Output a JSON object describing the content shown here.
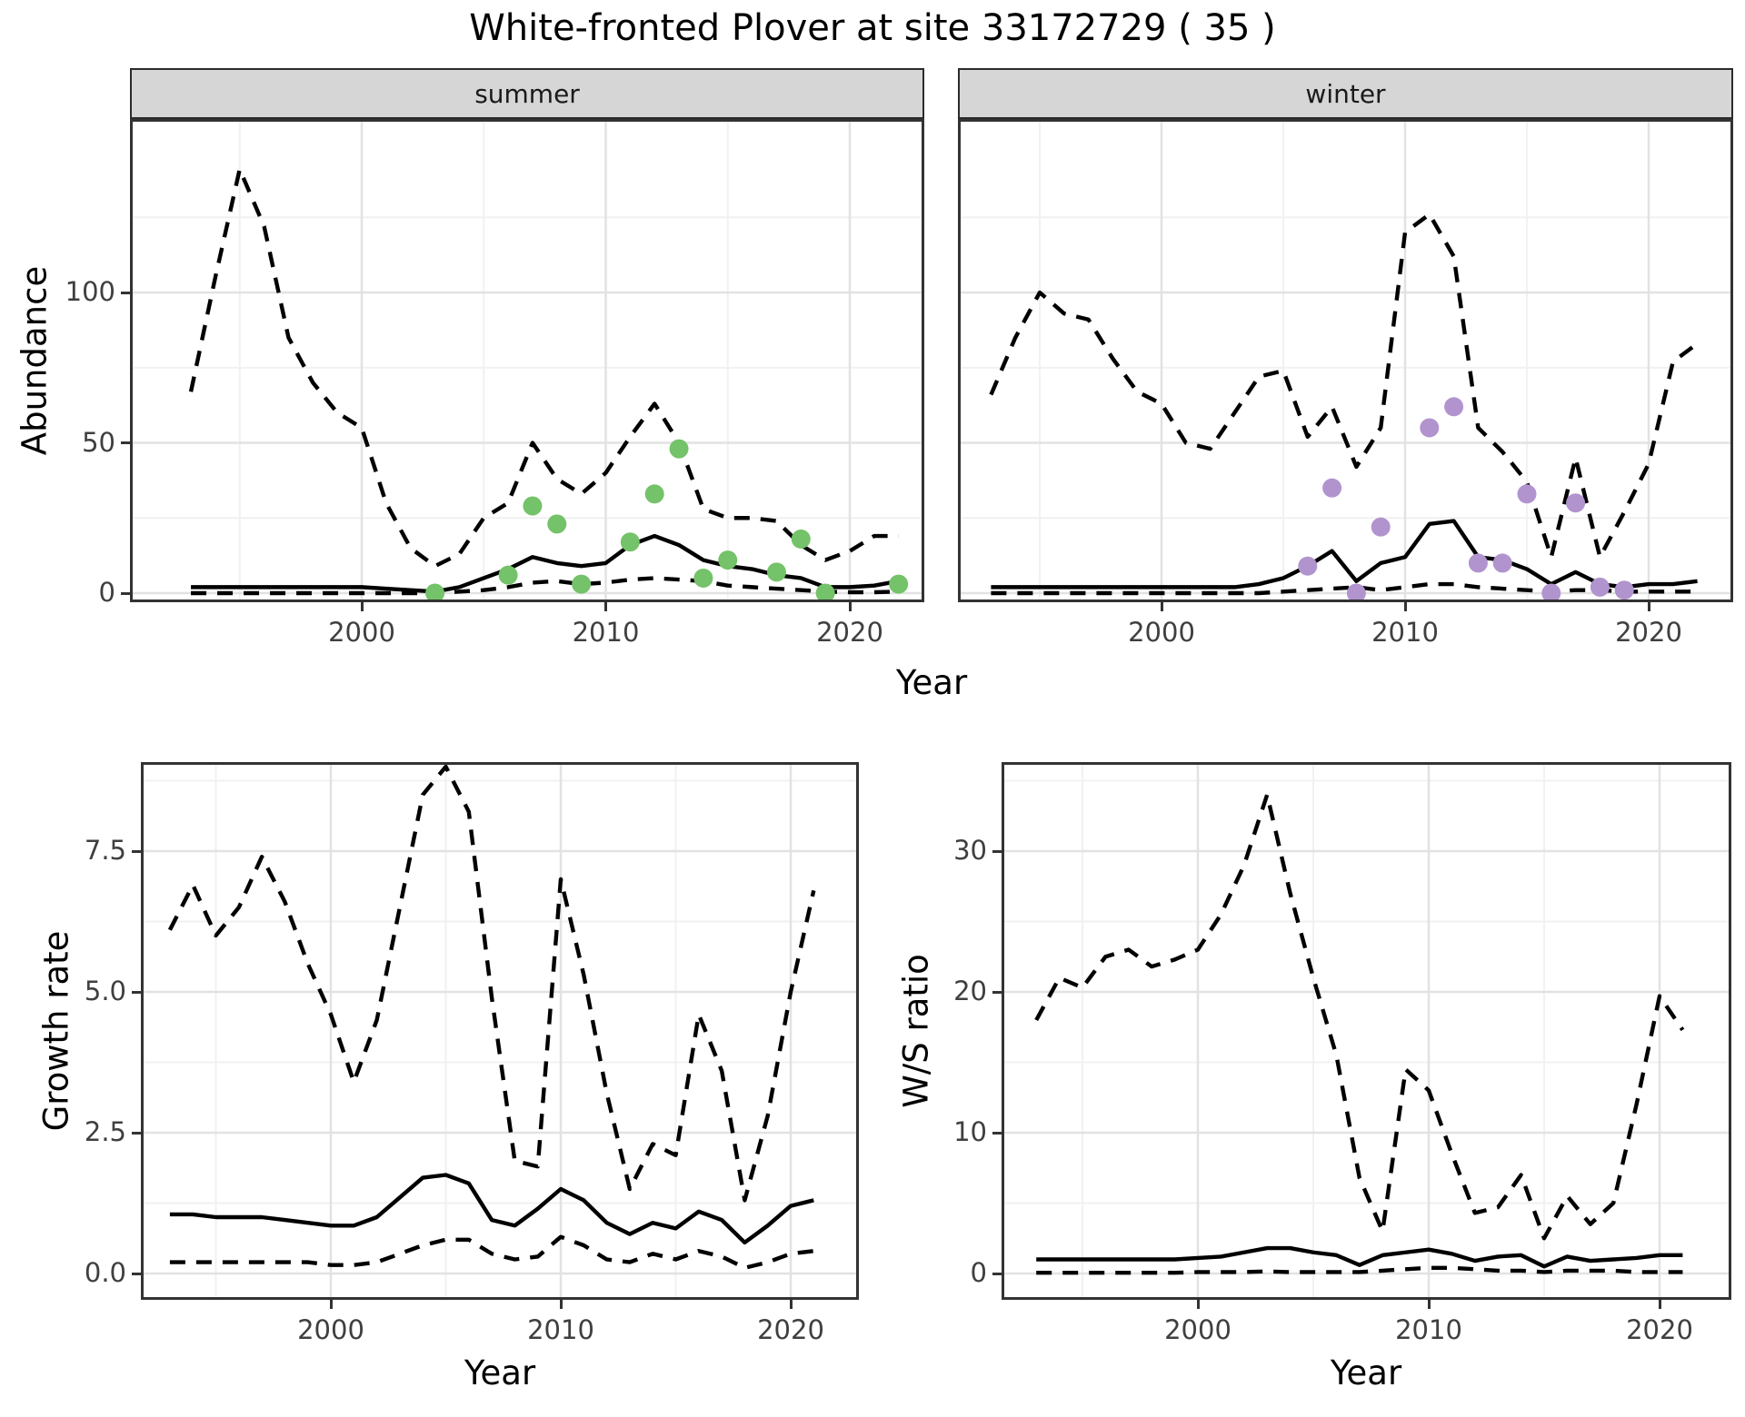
{
  "title": "White-fronted Plover at site 33172729 ( 35 )",
  "facets": {
    "summer_label": "summer",
    "winter_label": "winter"
  },
  "axes": {
    "abundance_label": "Abundance",
    "year_label_top": "Year",
    "year_label_growth": "Year",
    "year_label_ws": "Year",
    "growth_label": "Growth rate",
    "ws_label": "W/S ratio"
  },
  "colors": {
    "summer_point": "#74c269",
    "winter_point": "#b194ce",
    "line": "#000000",
    "strip_bg": "#d6d6d6",
    "grid_major": "#e2e2e2",
    "grid_minor": "#f1f1f1",
    "tick_text": "#3f3f3f"
  },
  "chart_data": [
    {
      "id": "summer",
      "type": "line",
      "facet": "summer",
      "ylabel": "Abundance",
      "xlabel": "Year",
      "x_ticks": {
        "values": [
          2000,
          2010,
          2020
        ],
        "labels": [
          "2000",
          "2010",
          "2020"
        ]
      },
      "x_minor": [
        1995,
        2005,
        2015
      ],
      "y_ticks": {
        "values": [
          0,
          50,
          100
        ],
        "labels": [
          "0",
          "50",
          "100"
        ]
      },
      "y_minor": [
        25,
        75,
        125
      ],
      "ylim": [
        0,
        147
      ],
      "years": [
        1993,
        1994,
        1995,
        1996,
        1997,
        1998,
        1999,
        2000,
        2001,
        2002,
        2003,
        2004,
        2005,
        2006,
        2007,
        2008,
        2009,
        2010,
        2011,
        2012,
        2013,
        2014,
        2015,
        2016,
        2017,
        2018,
        2019,
        2020,
        2021,
        2022
      ],
      "series": [
        {
          "name": "upper_ci",
          "style": "dashed",
          "values": [
            67,
            105,
            141,
            122,
            85,
            70,
            60,
            55,
            30,
            15,
            9,
            13,
            25,
            30,
            50,
            38,
            33,
            40,
            52,
            63,
            50,
            28,
            25,
            25,
            24,
            16,
            11,
            14,
            19,
            19
          ]
        },
        {
          "name": "mean",
          "style": "solid",
          "values": [
            2,
            2,
            2,
            2,
            2,
            2,
            2,
            2,
            1.5,
            1,
            0.5,
            2,
            5,
            8,
            12,
            10,
            9,
            10,
            16,
            19,
            16,
            11,
            9,
            8,
            6,
            5,
            2,
            2,
            2.5,
            4
          ]
        },
        {
          "name": "lower_ci",
          "style": "dashed",
          "values": [
            0,
            0,
            0,
            0,
            0,
            0,
            0,
            0,
            0,
            0,
            0,
            0.5,
            1,
            2,
            3.5,
            4,
            3,
            3.5,
            4.5,
            5,
            4.5,
            4,
            2.5,
            2,
            1.5,
            1,
            0.5,
            0.3,
            0.3,
            0.5
          ]
        }
      ],
      "points": {
        "name": "summer_counts",
        "color_key": "summer_point",
        "years": [
          2003,
          2006,
          2007,
          2008,
          2009,
          2011,
          2012,
          2013,
          2014,
          2015,
          2017,
          2018,
          2019,
          2022
        ],
        "values": [
          0,
          6,
          29,
          23,
          3,
          17,
          33,
          48,
          5,
          11,
          7,
          18,
          0,
          3
        ]
      }
    },
    {
      "id": "winter",
      "type": "line",
      "facet": "winter",
      "ylabel": "Abundance",
      "xlabel": "Year",
      "x_ticks": {
        "values": [
          2000,
          2010,
          2020
        ],
        "labels": [
          "2000",
          "2010",
          "2020"
        ]
      },
      "x_minor": [
        1995,
        2005,
        2015
      ],
      "y_ticks": {
        "values": [
          0,
          50,
          100
        ],
        "labels": [
          "0",
          "50",
          "100"
        ]
      },
      "y_minor": [
        25,
        75,
        125
      ],
      "ylim": [
        0,
        147
      ],
      "years": [
        1993,
        1994,
        1995,
        1996,
        1997,
        1998,
        1999,
        2000,
        2001,
        2002,
        2003,
        2004,
        2005,
        2006,
        2007,
        2008,
        2009,
        2010,
        2011,
        2012,
        2013,
        2014,
        2015,
        2016,
        2017,
        2018,
        2019,
        2020,
        2021,
        2022
      ],
      "series": [
        {
          "name": "upper_ci",
          "style": "dashed",
          "values": [
            66,
            85,
            100,
            93,
            91,
            78,
            67,
            63,
            50,
            48,
            60,
            72,
            74,
            52,
            62,
            42,
            55,
            120,
            126,
            112,
            55,
            47,
            37,
            12,
            45,
            12,
            27,
            43,
            77,
            83
          ]
        },
        {
          "name": "mean",
          "style": "solid",
          "values": [
            2,
            2,
            2,
            2,
            2,
            2,
            2,
            2,
            2,
            2,
            2,
            3,
            5,
            9,
            14,
            4,
            10,
            12,
            23,
            24,
            12,
            11,
            8,
            3,
            7,
            3,
            2,
            3,
            3,
            4
          ]
        },
        {
          "name": "lower_ci",
          "style": "dashed",
          "values": [
            0,
            0,
            0,
            0,
            0,
            0,
            0,
            0,
            0,
            0,
            0,
            0,
            0.5,
            1,
            1.5,
            2,
            1,
            2,
            3,
            3,
            2,
            1.5,
            1,
            0.5,
            1,
            1,
            0.5,
            0.5,
            0.5,
            0.5
          ]
        }
      ],
      "points": {
        "name": "winter_counts",
        "color_key": "winter_point",
        "years": [
          2006,
          2007,
          2008,
          2009,
          2011,
          2012,
          2013,
          2014,
          2015,
          2016,
          2017,
          2018,
          2019
        ],
        "values": [
          9,
          35,
          0,
          22,
          55,
          62,
          10,
          10,
          33,
          0,
          30,
          2,
          1
        ]
      }
    },
    {
      "id": "growth",
      "type": "line",
      "ylabel": "Growth rate",
      "xlabel": "Year",
      "x_ticks": {
        "values": [
          2000,
          2010,
          2020
        ],
        "labels": [
          "2000",
          "2010",
          "2020"
        ]
      },
      "x_minor": [
        1995,
        2005,
        2015
      ],
      "y_ticks": {
        "values": [
          0,
          2.5,
          5,
          7.5
        ],
        "labels": [
          "0.0",
          "2.5",
          "5.0",
          "7.5"
        ]
      },
      "y_minor": [
        1.25,
        3.75,
        6.25,
        8.75
      ],
      "ylim": [
        0,
        9.1
      ],
      "years": [
        1993,
        1994,
        1995,
        1996,
        1997,
        1998,
        1999,
        2000,
        2001,
        2002,
        2003,
        2004,
        2005,
        2006,
        2007,
        2008,
        2009,
        2010,
        2011,
        2012,
        2013,
        2014,
        2015,
        2016,
        2017,
        2018,
        2019,
        2020,
        2021
      ],
      "series": [
        {
          "name": "upper_ci",
          "style": "dashed",
          "values": [
            6.1,
            6.9,
            6.0,
            6.5,
            7.4,
            6.6,
            5.5,
            4.6,
            3.4,
            4.5,
            6.5,
            8.5,
            9.0,
            8.2,
            4.9,
            2.0,
            1.9,
            7.0,
            5.3,
            3.2,
            1.5,
            2.3,
            2.1,
            4.6,
            3.6,
            1.3,
            2.8,
            5.0,
            6.8
          ]
        },
        {
          "name": "mean",
          "style": "solid",
          "values": [
            1.05,
            1.05,
            1.0,
            1.0,
            1.0,
            0.95,
            0.9,
            0.85,
            0.85,
            1.0,
            1.35,
            1.7,
            1.75,
            1.6,
            0.95,
            0.85,
            1.15,
            1.5,
            1.3,
            0.9,
            0.7,
            0.9,
            0.8,
            1.1,
            0.95,
            0.55,
            0.85,
            1.2,
            1.3
          ]
        },
        {
          "name": "lower_ci",
          "style": "dashed",
          "values": [
            0.2,
            0.2,
            0.2,
            0.2,
            0.2,
            0.2,
            0.2,
            0.15,
            0.15,
            0.2,
            0.35,
            0.5,
            0.6,
            0.6,
            0.35,
            0.25,
            0.3,
            0.65,
            0.5,
            0.25,
            0.2,
            0.35,
            0.25,
            0.4,
            0.3,
            0.1,
            0.2,
            0.35,
            0.4
          ]
        }
      ]
    },
    {
      "id": "ws",
      "type": "line",
      "ylabel": "W/S ratio",
      "xlabel": "Year",
      "x_ticks": {
        "values": [
          2000,
          2010,
          2020
        ],
        "labels": [
          "2000",
          "2010",
          "2020"
        ]
      },
      "x_minor": [
        1995,
        2005,
        2015
      ],
      "y_ticks": {
        "values": [
          0,
          10,
          20,
          30
        ],
        "labels": [
          "0",
          "10",
          "20",
          "30"
        ]
      },
      "y_minor": [
        5,
        15,
        25,
        35
      ],
      "ylim": [
        0,
        36
      ],
      "years": [
        1993,
        1994,
        1995,
        1996,
        1997,
        1998,
        1999,
        2000,
        2001,
        2002,
        2003,
        2004,
        2005,
        2006,
        2007,
        2008,
        2009,
        2010,
        2011,
        2012,
        2013,
        2014,
        2015,
        2016,
        2017,
        2018,
        2019,
        2020,
        2021
      ],
      "series": [
        {
          "name": "upper_ci",
          "style": "dashed",
          "values": [
            18,
            21,
            20.3,
            22.5,
            23,
            21.8,
            22.3,
            23,
            25.5,
            29,
            34,
            27,
            21,
            15.5,
            6.8,
            3,
            14.5,
            13,
            8.5,
            4.3,
            4.7,
            7,
            2.5,
            5.5,
            3.5,
            5,
            12,
            19.7,
            17.3
          ]
        },
        {
          "name": "mean",
          "style": "solid",
          "values": [
            1,
            1,
            1,
            1,
            1,
            1,
            1,
            1.1,
            1.2,
            1.5,
            1.8,
            1.8,
            1.5,
            1.3,
            0.6,
            1.3,
            1.5,
            1.7,
            1.4,
            0.9,
            1.2,
            1.3,
            0.5,
            1.2,
            0.9,
            1.0,
            1.1,
            1.3,
            1.3
          ]
        },
        {
          "name": "lower_ci",
          "style": "dashed",
          "values": [
            0.05,
            0.05,
            0.05,
            0.05,
            0.05,
            0.05,
            0.05,
            0.1,
            0.1,
            0.1,
            0.15,
            0.1,
            0.1,
            0.1,
            0.1,
            0.2,
            0.3,
            0.4,
            0.4,
            0.3,
            0.2,
            0.2,
            0.1,
            0.2,
            0.2,
            0.2,
            0.1,
            0.1,
            0.1
          ]
        }
      ]
    }
  ]
}
